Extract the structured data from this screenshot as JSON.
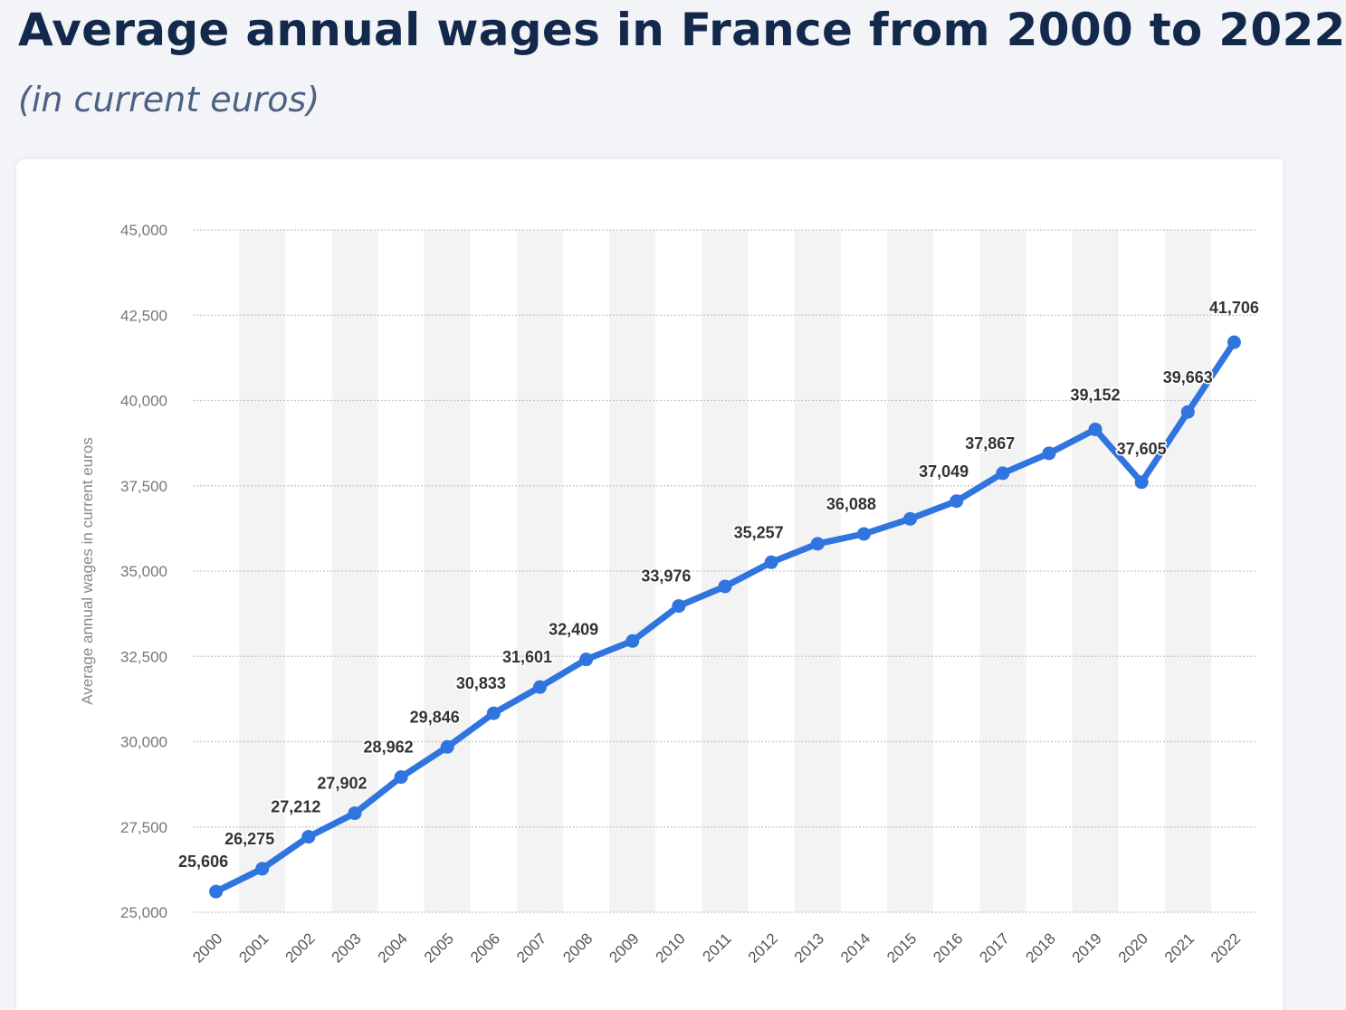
{
  "header": {
    "title": "Average annual wages in France from 2000 to 2022",
    "subtitle": "(in current euros)"
  },
  "colors": {
    "line": "#2f74df",
    "title": "#13294b",
    "subtitle": "#4d6182",
    "stripe": "#f3f3f3",
    "grid": "#c4c4c4"
  },
  "chart_data": {
    "type": "line",
    "title": "Average annual wages in France from 2000 to 2022",
    "subtitle": "(in current euros)",
    "ylabel": "Average annual wages in current euros",
    "xlabel": "",
    "ylim": [
      25000,
      45000
    ],
    "yticks": [
      25000,
      27500,
      30000,
      32500,
      35000,
      37500,
      40000,
      42500,
      45000
    ],
    "ytick_labels": [
      "25,000",
      "27,500",
      "30,000",
      "32,500",
      "35,000",
      "37,500",
      "40,000",
      "42,500",
      "45,000"
    ],
    "grid": true,
    "legend": false,
    "categories": [
      "2000",
      "2001",
      "2002",
      "2003",
      "2004",
      "2005",
      "2006",
      "2007",
      "2008",
      "2009",
      "2010",
      "2011",
      "2012",
      "2013",
      "2014",
      "2015",
      "2016",
      "2017",
      "2018",
      "2019",
      "2020",
      "2021",
      "2022"
    ],
    "series": [
      {
        "values": [
          25606,
          26275,
          27212,
          27902,
          28962,
          29846,
          30833,
          31601,
          32409,
          32950,
          33976,
          34550,
          35257,
          35800,
          36088,
          36530,
          37049,
          37867,
          38450,
          39152,
          37605,
          39663,
          41706
        ],
        "labels": [
          "25,606",
          "26,275",
          "27,212",
          "27,902",
          "28,962",
          "29,846",
          "30,833",
          "31,601",
          "32,409",
          "",
          "33,976",
          "",
          "35,257",
          "",
          "36,088",
          "",
          "37,049",
          "37,867",
          "",
          "39,152",
          "37,605",
          "39,663",
          "41,706"
        ]
      }
    ]
  }
}
